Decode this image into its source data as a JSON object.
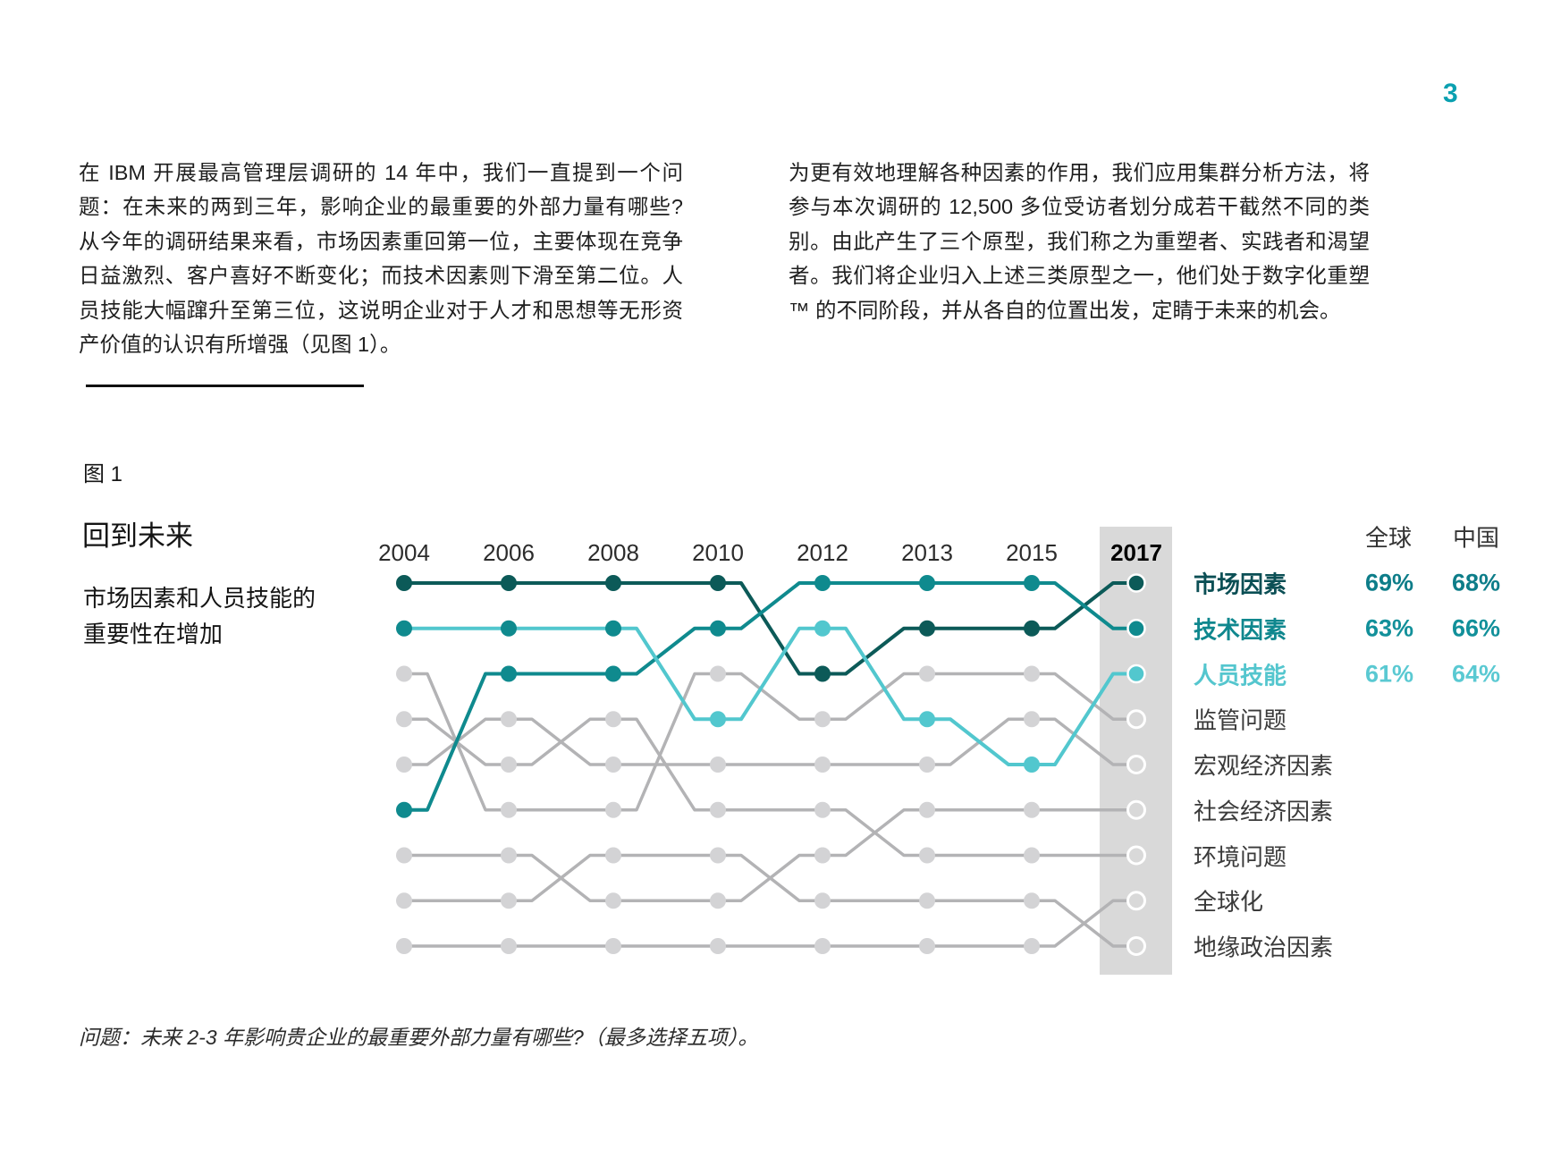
{
  "page": {
    "number": "3",
    "accent_color": "#0aa0b0"
  },
  "intro": {
    "left": "在 IBM 开展最高管理层调研的 14 年中，我们一直提到一个问题：在未来的两到三年，影响企业的最重要的外部力量有哪些? 从今年的调研结果来看，市场因素重回第一位，主要体现在竞争日益激烈、客户喜好不断变化；而技术因素则下滑至第二位。人员技能大幅蹿升至第三位，这说明企业对于人才和思想等无形资产价值的认识有所增强（见图 1）。",
    "right": "为更有效地理解各种因素的作用，我们应用集群分析方法，将参与本次调研的 12,500 多位受访者划分成若干截然不同的类别。由此产生了三个原型，我们称之为重塑者、实践者和渴望者。我们将企业归入上述三类原型之一，他们处于数字化重塑™ 的不同阶段，并从各自的位置出发，定睛于未来的机会。"
  },
  "figure": {
    "label": "图 1",
    "title": "回到未来",
    "subtitle_line1": "市场因素和人员技能的",
    "subtitle_line2": "重要性在增加",
    "caption": "问题：未来 2-3 年影响贵企业的最重要外部力量有哪些?（最多选择五项）。"
  },
  "chart_data": {
    "type": "line",
    "subtype": "bump-ranking",
    "title": "回到未来",
    "xlabel": "",
    "ylabel": "rank (1 = most important, top)",
    "years": [
      "2004",
      "2006",
      "2008",
      "2010",
      "2012",
      "2013",
      "2015",
      "2017"
    ],
    "highlight_year": "2017",
    "highlight_band_color": "#d9d9d9",
    "grid": false,
    "legend_position": "right",
    "columns": {
      "global": "全球",
      "china": "中国"
    },
    "colors": {
      "gray_line": "#b3b3b5",
      "gray_dot": "#d3d3d5",
      "ring_fill": "#d9d9d9",
      "ring_stroke": "#ffffff"
    },
    "series": [
      {
        "name": "市场因素",
        "ranks": [
          1,
          1,
          1,
          1,
          3,
          2,
          2,
          1
        ],
        "global": "69%",
        "china": "68%",
        "line_color": "#0c5a58",
        "label_color": "#0b4f55",
        "value_color": "#0d7d89"
      },
      {
        "name": "技术因素",
        "ranks": [
          6,
          3,
          3,
          2,
          1,
          1,
          1,
          2
        ],
        "global": "63%",
        "china": "66%",
        "line_color": "#0f8a8e",
        "label_color": "#0f878e",
        "value_color": "#12909a"
      },
      {
        "name": "人员技能",
        "ranks": [
          2,
          2,
          2,
          4,
          2,
          4,
          5,
          3
        ],
        "global": "61%",
        "china": "64%",
        "line_color": "#52c7ce",
        "label_color": "#54c6ce",
        "value_color": "#5ac9d2",
        "early_dot_color": "#0f8a8e"
      },
      {
        "name": "监管问题",
        "ranks": [
          3,
          6,
          6,
          3,
          4,
          3,
          3,
          4
        ]
      },
      {
        "name": "宏观经济因素",
        "ranks": [
          5,
          4,
          5,
          5,
          5,
          5,
          4,
          5
        ]
      },
      {
        "name": "社会经济因素",
        "ranks": [
          7,
          7,
          8,
          8,
          7,
          6,
          6,
          6
        ]
      },
      {
        "name": "环境问题",
        "ranks": [
          4,
          5,
          4,
          6,
          6,
          7,
          7,
          7
        ]
      },
      {
        "name": "全球化",
        "ranks": [
          9,
          9,
          9,
          9,
          9,
          9,
          9,
          8
        ]
      },
      {
        "name": "地缘政治因素",
        "ranks": [
          8,
          8,
          7,
          7,
          8,
          8,
          8,
          9
        ]
      }
    ]
  }
}
